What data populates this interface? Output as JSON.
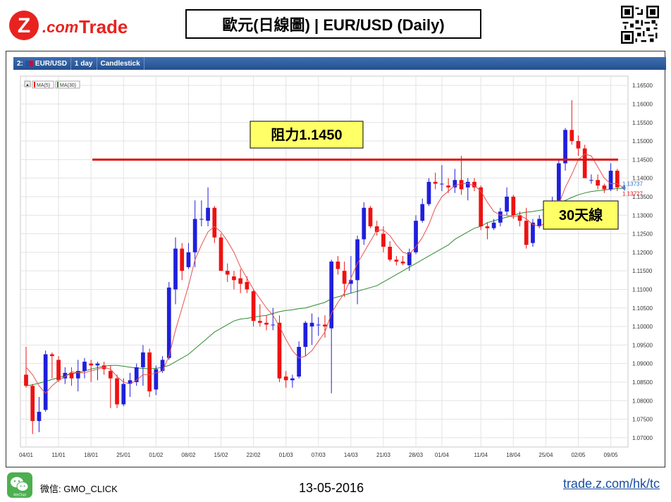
{
  "header": {
    "logo_text_z": "Z",
    "logo_text_com": ".com",
    "logo_text_trade": "Trade",
    "title": "歐元(日線圖) | EUR/USD (Daily)"
  },
  "toolbar": {
    "index": "2:",
    "symbol": "EUR/USD",
    "interval": "1 day",
    "chart_type": "Candlestick"
  },
  "legend": {
    "arrow": "▲",
    "ma5": "MA(5)",
    "ma30": "MA(30)"
  },
  "annotations": {
    "resistance": "阻力1.1450",
    "ma30_label": "30天線",
    "price_ma5": "1.13737",
    "price_last": "1.13727"
  },
  "footer": {
    "wechat_icon_label": "WeChat",
    "wechat_id": "微信: GMO_CLICK",
    "date": "13-05-2016",
    "url": "trade.z.com/hk/tc"
  },
  "colors": {
    "up": "#1f1fdc",
    "down": "#ee1111",
    "ma5": "#e85050",
    "ma30": "#2e8b2e",
    "resistance": "#dd1111",
    "label_bg": "#ffff66"
  },
  "chart_data": {
    "type": "candlestick",
    "symbol": "EUR/USD",
    "interval": "1 day",
    "ylim": [
      1.0675,
      1.1675
    ],
    "y_ticks": [
      "1.16500",
      "1.16000",
      "1.15500",
      "1.15000",
      "1.14500",
      "1.14000",
      "1.13500",
      "1.13000",
      "1.12500",
      "1.12000",
      "1.11500",
      "1.11000",
      "1.10500",
      "1.10000",
      "1.09500",
      "1.09000",
      "1.08500",
      "1.08000",
      "1.07500",
      "1.07000"
    ],
    "x_ticks": [
      {
        "label": "04/01",
        "index": 0
      },
      {
        "label": "11/01",
        "index": 5
      },
      {
        "label": "18/01",
        "index": 10
      },
      {
        "label": "25/01",
        "index": 15
      },
      {
        "label": "01/02",
        "index": 20
      },
      {
        "label": "08/02",
        "index": 25
      },
      {
        "label": "15/02",
        "index": 30
      },
      {
        "label": "22/02",
        "index": 35
      },
      {
        "label": "01/03",
        "index": 40
      },
      {
        "label": "07/03",
        "index": 45
      },
      {
        "label": "14/03",
        "index": 50
      },
      {
        "label": "21/03",
        "index": 55
      },
      {
        "label": "28/03",
        "index": 60
      },
      {
        "label": "01/04",
        "index": 64
      },
      {
        "label": "11/04",
        "index": 70
      },
      {
        "label": "18/04",
        "index": 75
      },
      {
        "label": "25/04",
        "index": 80
      },
      {
        "label": "02/05",
        "index": 85
      },
      {
        "label": "09/05",
        "index": 90
      }
    ],
    "resistance_level": 1.145,
    "last_price": 1.13727,
    "ma5_last": 1.13737,
    "candles": [
      [
        1.087,
        1.0945,
        1.0835,
        1.084
      ],
      [
        1.084,
        1.0845,
        1.071,
        1.0745
      ],
      [
        1.0745,
        1.081,
        1.0715,
        1.077
      ],
      [
        1.0775,
        1.0935,
        1.077,
        1.0925
      ],
      [
        1.0925,
        1.093,
        1.086,
        1.092
      ],
      [
        1.091,
        1.092,
        1.085,
        1.0855
      ],
      [
        1.086,
        1.089,
        1.0845,
        1.0875
      ],
      [
        1.0875,
        1.089,
        1.084,
        1.086
      ],
      [
        1.086,
        1.091,
        1.0825,
        1.088
      ],
      [
        1.088,
        1.0915,
        1.086,
        1.0905
      ],
      [
        1.09,
        1.091,
        1.085,
        1.0895
      ],
      [
        1.0895,
        1.0905,
        1.0855,
        1.09
      ],
      [
        1.0895,
        1.0905,
        1.087,
        1.0885
      ],
      [
        1.088,
        1.0895,
        1.078,
        1.086
      ],
      [
        1.086,
        1.087,
        1.078,
        1.079
      ],
      [
        1.079,
        1.086,
        1.0785,
        1.0845
      ],
      [
        1.0845,
        1.0875,
        1.081,
        1.0855
      ],
      [
        1.085,
        1.09,
        1.084,
        1.089
      ],
      [
        1.089,
        1.095,
        1.084,
        1.093
      ],
      [
        1.093,
        1.094,
        1.081,
        1.0825
      ],
      [
        1.083,
        1.0895,
        1.0815,
        1.0885
      ],
      [
        1.088,
        1.092,
        1.0875,
        1.091
      ],
      [
        1.0915,
        1.112,
        1.091,
        1.1105
      ],
      [
        1.11,
        1.124,
        1.106,
        1.121
      ],
      [
        1.121,
        1.1225,
        1.1125,
        1.115
      ],
      [
        1.116,
        1.1225,
        1.1155,
        1.12
      ],
      [
        1.12,
        1.134,
        1.116,
        1.129
      ],
      [
        1.129,
        1.134,
        1.127,
        1.129
      ],
      [
        1.1285,
        1.1375,
        1.127,
        1.132
      ],
      [
        1.132,
        1.1325,
        1.1225,
        1.124
      ],
      [
        1.124,
        1.125,
        1.115,
        1.115
      ],
      [
        1.115,
        1.117,
        1.112,
        1.114
      ],
      [
        1.1135,
        1.115,
        1.11,
        1.1125
      ],
      [
        1.113,
        1.1155,
        1.109,
        1.1115
      ],
      [
        1.112,
        1.1135,
        1.109,
        1.11
      ],
      [
        1.1095,
        1.11,
        1.1,
        1.1015
      ],
      [
        1.1015,
        1.106,
        1.1,
        1.101
      ],
      [
        1.101,
        1.103,
        1.099,
        1.1005
      ],
      [
        1.1005,
        1.105,
        1.099,
        1.1005
      ],
      [
        1.101,
        1.103,
        1.085,
        1.086
      ],
      [
        1.0865,
        1.088,
        1.0835,
        1.0855
      ],
      [
        1.0855,
        1.087,
        1.0835,
        1.086
      ],
      [
        1.0865,
        1.096,
        1.086,
        1.0945
      ],
      [
        1.0945,
        1.1015,
        1.092,
        1.101
      ],
      [
        1.1,
        1.1035,
        1.095,
        1.101
      ],
      [
        1.1005,
        1.1025,
        1.0975,
        1.1005
      ],
      [
        1.1005,
        1.103,
        1.097,
        1.1
      ],
      [
        1.0995,
        1.118,
        1.082,
        1.1175
      ],
      [
        1.1175,
        1.119,
        1.114,
        1.1155
      ],
      [
        1.115,
        1.1175,
        1.108,
        1.1115
      ],
      [
        1.1115,
        1.119,
        1.109,
        1.1125
      ],
      [
        1.1125,
        1.1245,
        1.106,
        1.1235
      ],
      [
        1.1235,
        1.1335,
        1.122,
        1.132
      ],
      [
        1.132,
        1.1325,
        1.1265,
        1.127
      ],
      [
        1.127,
        1.1285,
        1.1245,
        1.1255
      ],
      [
        1.125,
        1.127,
        1.12,
        1.1215
      ],
      [
        1.1215,
        1.123,
        1.1175,
        1.118
      ],
      [
        1.118,
        1.119,
        1.1165,
        1.1175
      ],
      [
        1.1175,
        1.119,
        1.1165,
        1.117
      ],
      [
        1.1165,
        1.121,
        1.115,
        1.12
      ],
      [
        1.12,
        1.13,
        1.1195,
        1.1285
      ],
      [
        1.1285,
        1.1345,
        1.128,
        1.133
      ],
      [
        1.133,
        1.14,
        1.1325,
        1.139
      ],
      [
        1.139,
        1.1415,
        1.137,
        1.1385
      ],
      [
        1.1385,
        1.1435,
        1.1365,
        1.1385
      ],
      [
        1.138,
        1.14,
        1.136,
        1.1375
      ],
      [
        1.1375,
        1.1425,
        1.136,
        1.1395
      ],
      [
        1.1395,
        1.146,
        1.1355,
        1.137
      ],
      [
        1.1375,
        1.14,
        1.134,
        1.139
      ],
      [
        1.139,
        1.14,
        1.1365,
        1.1375
      ],
      [
        1.1375,
        1.138,
        1.126,
        1.127
      ],
      [
        1.127,
        1.128,
        1.1235,
        1.1265
      ],
      [
        1.1265,
        1.129,
        1.126,
        1.128
      ],
      [
        1.128,
        1.132,
        1.127,
        1.131
      ],
      [
        1.131,
        1.1375,
        1.13,
        1.135
      ],
      [
        1.135,
        1.1355,
        1.129,
        1.13
      ],
      [
        1.13,
        1.131,
        1.127,
        1.1285
      ],
      [
        1.1285,
        1.132,
        1.121,
        1.122
      ],
      [
        1.1225,
        1.129,
        1.1215,
        1.128
      ],
      [
        1.127,
        1.13,
        1.1265,
        1.129
      ],
      [
        1.129,
        1.132,
        1.128,
        1.131
      ],
      [
        1.131,
        1.135,
        1.1305,
        1.1335
      ],
      [
        1.134,
        1.145,
        1.134,
        1.144
      ],
      [
        1.144,
        1.1535,
        1.142,
        1.153
      ],
      [
        1.153,
        1.161,
        1.149,
        1.15
      ],
      [
        1.15,
        1.1515,
        1.146,
        1.148
      ],
      [
        1.148,
        1.149,
        1.14,
        1.14
      ],
      [
        1.1395,
        1.141,
        1.1385,
        1.1395
      ],
      [
        1.1395,
        1.141,
        1.137,
        1.138
      ],
      [
        1.138,
        1.1385,
        1.136,
        1.137
      ],
      [
        1.137,
        1.144,
        1.1365,
        1.142
      ],
      [
        1.142,
        1.1425,
        1.1365,
        1.1375
      ],
      [
        1.1375,
        1.138,
        1.137,
        1.1373
      ]
    ],
    "ma5": [
      1.089,
      1.087,
      1.084,
      1.082,
      1.084,
      1.0855,
      1.0865,
      1.0878,
      1.0875,
      1.0875,
      1.088,
      1.0885,
      1.089,
      1.0885,
      1.0865,
      1.085,
      1.0845,
      1.0855,
      1.087,
      1.087,
      1.0875,
      1.088,
      1.092,
      1.099,
      1.105,
      1.111,
      1.118,
      1.122,
      1.1255,
      1.127,
      1.1255,
      1.123,
      1.12,
      1.116,
      1.113,
      1.11,
      1.1075,
      1.105,
      1.103,
      1.1,
      1.0965,
      1.0935,
      1.0915,
      1.092,
      1.0935,
      1.096,
      1.0985,
      1.1035,
      1.1065,
      1.109,
      1.113,
      1.117,
      1.12,
      1.123,
      1.126,
      1.126,
      1.1245,
      1.122,
      1.12,
      1.1195,
      1.1215,
      1.124,
      1.1275,
      1.132,
      1.135,
      1.1365,
      1.138,
      1.1385,
      1.1385,
      1.138,
      1.1365,
      1.1335,
      1.131,
      1.13,
      1.13,
      1.1295,
      1.13,
      1.129,
      1.1275,
      1.127,
      1.128,
      1.129,
      1.133,
      1.1375,
      1.141,
      1.145,
      1.1465,
      1.146,
      1.143,
      1.14,
      1.1385,
      1.1385,
      1.1374
    ],
    "ma30": [
      1.084,
      1.0843,
      1.0847,
      1.0852,
      1.0857,
      1.0862,
      1.0867,
      1.0872,
      1.0876,
      1.088,
      1.0885,
      1.0889,
      1.0893,
      1.0895,
      1.0895,
      1.0893,
      1.089,
      1.0888,
      1.0887,
      1.0886,
      1.0887,
      1.089,
      1.0895,
      1.0905,
      1.0915,
      1.0925,
      1.094,
      1.0955,
      1.097,
      1.0985,
      1.0995,
      1.1005,
      1.1015,
      1.102,
      1.1022,
      1.1025,
      1.1028,
      1.103,
      1.1035,
      1.104,
      1.1043,
      1.1045,
      1.1048,
      1.105,
      1.1055,
      1.106,
      1.1065,
      1.1075,
      1.108,
      1.1085,
      1.109,
      1.1095,
      1.11,
      1.1105,
      1.111,
      1.112,
      1.113,
      1.114,
      1.115,
      1.116,
      1.117,
      1.118,
      1.119,
      1.12,
      1.121,
      1.122,
      1.1235,
      1.1245,
      1.1255,
      1.1265,
      1.127,
      1.128,
      1.1285,
      1.129,
      1.1295,
      1.13,
      1.1305,
      1.1308,
      1.131,
      1.1313,
      1.1316,
      1.132,
      1.133,
      1.134,
      1.1348,
      1.1355,
      1.136,
      1.1364,
      1.1366,
      1.1368,
      1.137,
      1.1372,
      1.1373
    ]
  }
}
